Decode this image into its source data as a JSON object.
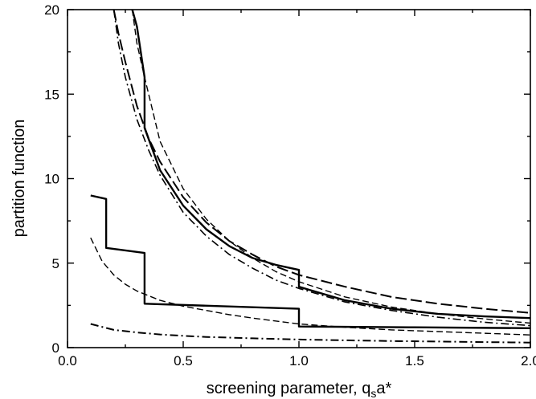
{
  "chart_data": {
    "type": "line",
    "xlabel": "screening parameter,  q",
    "xlabel_sub": "s",
    "xlabel_suffix": "a*",
    "ylabel": "partition function",
    "xlim": [
      0.0,
      2.0
    ],
    "ylim": [
      0,
      20
    ],
    "xticks": [
      "0.0",
      "0.5",
      "1.0",
      "1.5",
      "2.0"
    ],
    "yticks": [
      "0",
      "5",
      "10",
      "15",
      "20"
    ],
    "grid": false,
    "legend": "none",
    "series": [
      {
        "style": "solid",
        "width": 2.4,
        "x": [
          0.28,
          0.3,
          0.333,
          0.333,
          0.4,
          0.5,
          0.6,
          0.7,
          0.8,
          0.9,
          1.0,
          1.0,
          1.2,
          1.4,
          1.6,
          1.8,
          2.0
        ],
        "y": [
          20.0,
          19.0,
          16.0,
          13.0,
          10.5,
          8.4,
          7.0,
          6.0,
          5.3,
          4.9,
          4.6,
          3.6,
          2.8,
          2.3,
          2.0,
          1.85,
          1.75
        ]
      },
      {
        "style": "dashed",
        "width": 1.4,
        "x": [
          0.28,
          0.3,
          0.333,
          0.4,
          0.5,
          0.6,
          0.7,
          0.8,
          0.9,
          1.0,
          1.2,
          1.4,
          1.6,
          1.8,
          2.0
        ],
        "y": [
          20.0,
          18.0,
          16.0,
          12.2,
          9.4,
          7.6,
          6.3,
          5.3,
          4.5,
          3.9,
          3.0,
          2.4,
          2.0,
          1.7,
          1.45
        ]
      },
      {
        "style": "long-dash",
        "width": 2.0,
        "x": [
          0.2,
          0.22,
          0.25,
          0.3,
          0.35,
          0.4,
          0.5,
          0.6,
          0.7,
          0.8,
          0.9,
          1.0,
          1.2,
          1.4,
          1.6,
          1.8,
          2.0
        ],
        "y": [
          20.0,
          18.6,
          16.9,
          14.3,
          12.4,
          11.0,
          8.9,
          7.4,
          6.3,
          5.5,
          4.8,
          4.3,
          3.6,
          3.0,
          2.6,
          2.3,
          2.05
        ]
      },
      {
        "style": "dash-dot",
        "width": 1.6,
        "x": [
          0.2,
          0.22,
          0.25,
          0.3,
          0.35,
          0.4,
          0.5,
          0.6,
          0.7,
          0.8,
          0.9,
          1.0,
          1.2,
          1.4,
          1.6,
          1.8,
          2.0
        ],
        "y": [
          20.0,
          18.0,
          16.0,
          13.5,
          11.7,
          10.2,
          8.0,
          6.6,
          5.5,
          4.7,
          4.0,
          3.5,
          2.7,
          2.2,
          1.8,
          1.5,
          1.3
        ]
      },
      {
        "style": "solid",
        "width": 2.4,
        "x": [
          0.1,
          0.167,
          0.167,
          0.333,
          0.333,
          1.0,
          1.0,
          1.5,
          2.0
        ],
        "y": [
          9.0,
          8.8,
          5.9,
          5.6,
          2.6,
          2.3,
          1.25,
          1.2,
          1.15
        ]
      },
      {
        "style": "dashed",
        "width": 1.4,
        "x": [
          0.1,
          0.15,
          0.2,
          0.25,
          0.3,
          0.4,
          0.5,
          0.6,
          0.7,
          0.8,
          1.0,
          1.2,
          1.4,
          1.6,
          1.8,
          2.0
        ],
        "y": [
          6.5,
          5.1,
          4.3,
          3.75,
          3.35,
          2.8,
          2.45,
          2.2,
          1.95,
          1.75,
          1.4,
          1.2,
          1.05,
          0.95,
          0.85,
          0.75
        ]
      },
      {
        "style": "dash-dot",
        "width": 2.0,
        "x": [
          0.1,
          0.2,
          0.3,
          0.4,
          0.5,
          0.6,
          0.8,
          1.0,
          1.2,
          1.4,
          1.6,
          1.8,
          2.0
        ],
        "y": [
          1.4,
          1.05,
          0.9,
          0.78,
          0.7,
          0.63,
          0.55,
          0.48,
          0.43,
          0.39,
          0.36,
          0.33,
          0.3
        ]
      }
    ]
  }
}
